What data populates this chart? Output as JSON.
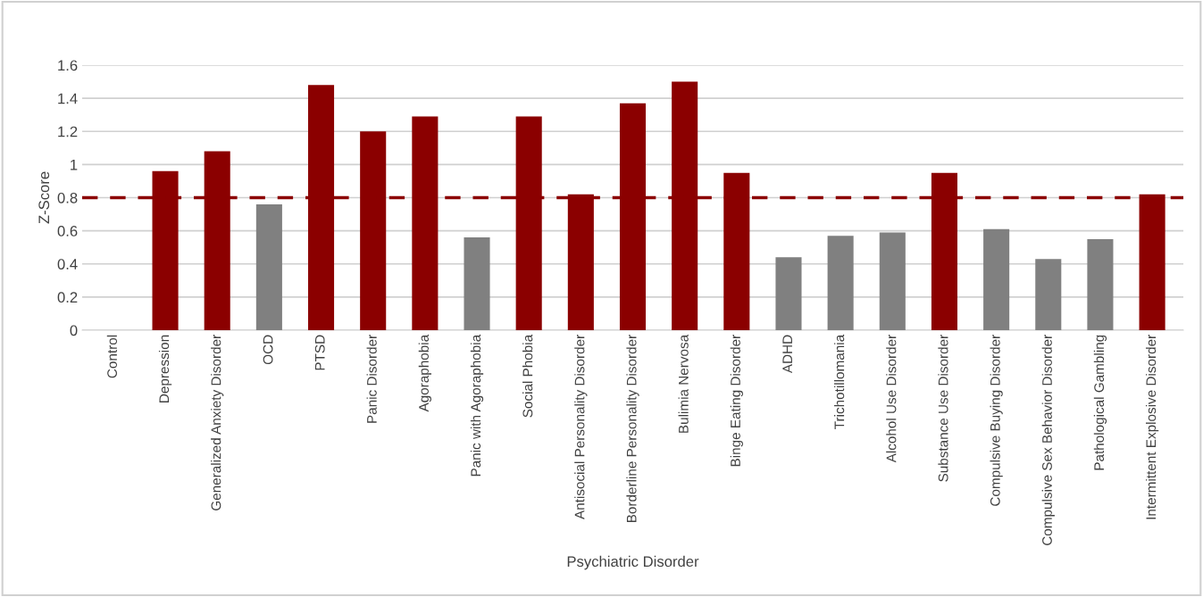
{
  "chart_data": {
    "type": "bar",
    "xlabel": "Psychiatric Disorder",
    "ylabel": "Z-Score",
    "categories": [
      "Control",
      "Depression",
      "Generalized Anxiety Disorder",
      "OCD",
      "PTSD",
      "Panic Disorder",
      "Agoraphobia",
      "Panic with Agoraphobia",
      "Social Phobia",
      "Antisocial Personality Disorder",
      "Borderline Personality Disorder",
      "Bulimia Nervosa",
      "Binge Eating Disorder",
      "ADHD",
      "Trichotillomania",
      "Alcohol Use Disorder",
      "Substance Use Disorder",
      "Compulsive Buying Disorder",
      "Compulsive Sex Behavior Disorder",
      "Pathological Gambling",
      "Intermittent Explosive Disorder"
    ],
    "values": [
      0,
      0.96,
      1.08,
      0.76,
      1.48,
      1.2,
      1.29,
      0.56,
      1.29,
      0.82,
      1.37,
      1.5,
      0.95,
      0.44,
      0.57,
      0.59,
      0.95,
      0.61,
      0.43,
      0.55,
      0.82
    ],
    "colors": [
      "#8b0000",
      "#8b0000",
      "#8b0000",
      "#808080",
      "#8b0000",
      "#8b0000",
      "#8b0000",
      "#808080",
      "#8b0000",
      "#8b0000",
      "#8b0000",
      "#8b0000",
      "#8b0000",
      "#808080",
      "#808080",
      "#808080",
      "#8b0000",
      "#808080",
      "#808080",
      "#808080",
      "#8b0000"
    ],
    "ylim": [
      0,
      1.6
    ],
    "yticks": [
      0,
      0.2,
      0.4,
      0.6,
      0.8,
      1,
      1.2,
      1.4,
      1.6
    ],
    "grid": "y",
    "ref_lines": [
      {
        "axis": "y",
        "value": 0.8,
        "color": "#8b0000",
        "line_style": "dashed"
      }
    ]
  }
}
